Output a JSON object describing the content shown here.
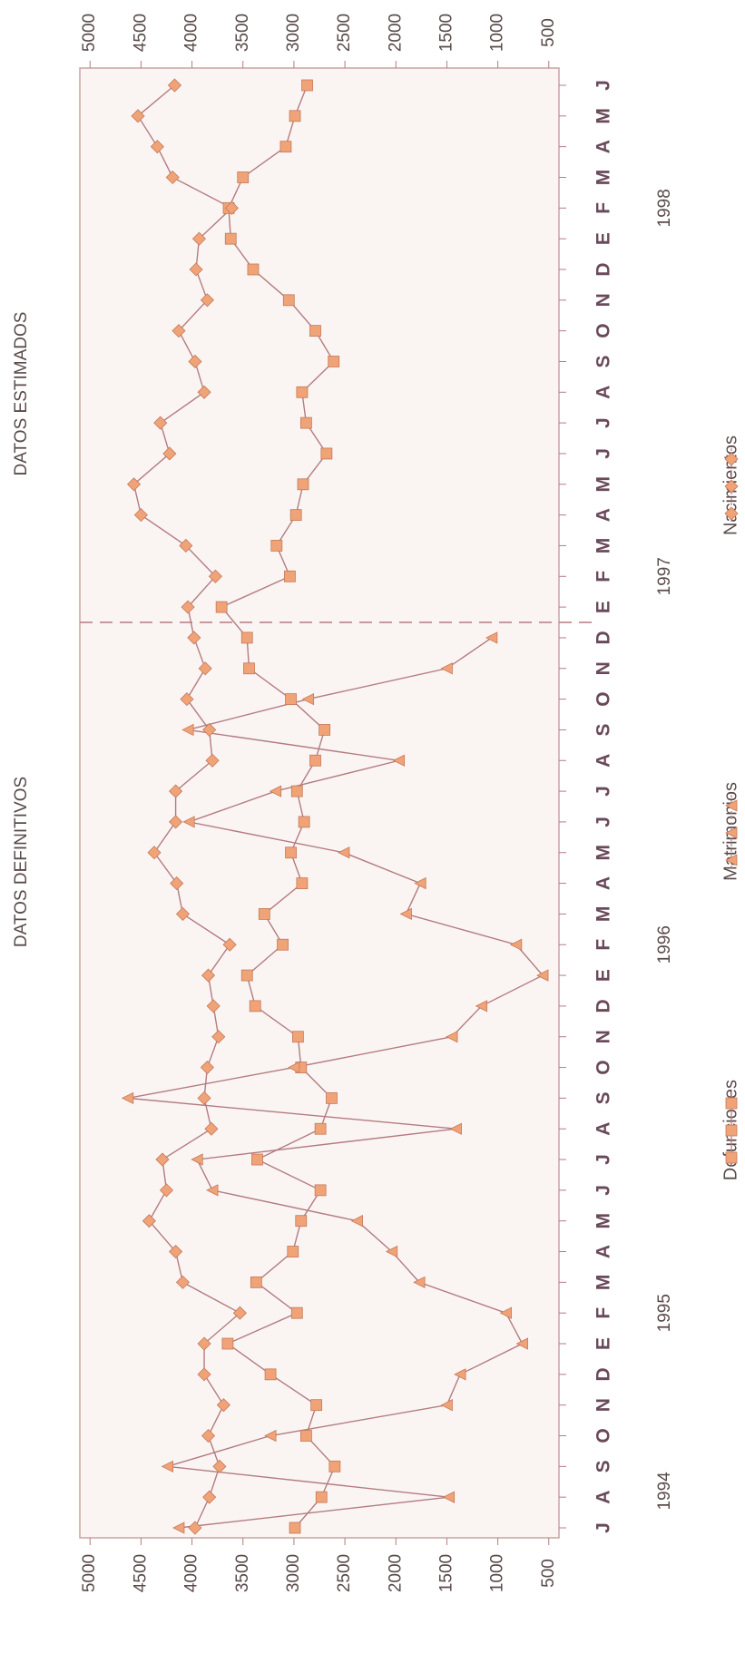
{
  "chart_data": {
    "type": "line",
    "annotations": [
      "DATOS DEFINITIVOS",
      "DATOS ESTIMADOS"
    ],
    "categories": [
      "J",
      "A",
      "S",
      "O",
      "N",
      "D",
      "E",
      "F",
      "M",
      "A",
      "M",
      "J",
      "J",
      "A",
      "S",
      "O",
      "N",
      "D",
      "E",
      "F",
      "M",
      "A",
      "M",
      "J",
      "J",
      "A",
      "S",
      "O",
      "N",
      "D",
      "E",
      "F",
      "M",
      "A",
      "M",
      "J",
      "J",
      "A",
      "S",
      "O",
      "N",
      "D",
      "E",
      "F",
      "M",
      "A",
      "M",
      "J"
    ],
    "year_labels": [
      "1994",
      "1995",
      "1996",
      "1997",
      "1998"
    ],
    "ylim": [
      400,
      5100
    ],
    "yticks": [
      500,
      1000,
      1500,
      2000,
      2500,
      3000,
      3500,
      4000,
      4500,
      5000
    ],
    "line_color": "#b47c80",
    "series": [
      {
        "name": "Defunciones",
        "marker": "square",
        "color": "#f0a377",
        "values": [
          2990,
          2730,
          2600,
          2880,
          2780,
          3230,
          3650,
          2970,
          3370,
          3010,
          2930,
          2740,
          3360,
          2740,
          2630,
          2930,
          2960,
          3380,
          3460,
          3110,
          3290,
          2920,
          3030,
          2900,
          2970,
          2790,
          2700,
          3030,
          3440,
          3460,
          3710,
          3040,
          3170,
          2980,
          2910,
          2680,
          2880,
          2920,
          2610,
          2790,
          3050,
          3400,
          3620,
          3640,
          3500,
          3080,
          2990,
          2870
        ]
      },
      {
        "name": "Matrimonios",
        "marker": "triangle",
        "color": "#f0a377",
        "values": [
          4130,
          1480,
          4240,
          3230,
          1500,
          1370,
          760,
          920,
          1770,
          2040,
          2380,
          3800,
          3950,
          1410,
          4630,
          3000,
          1450,
          1160,
          560,
          820,
          1900,
          1760,
          2510,
          4030,
          3180,
          1970,
          4040,
          2860,
          1500,
          1060,
          null,
          null,
          null,
          null,
          null,
          null,
          null,
          null,
          null,
          null,
          null,
          null,
          null,
          null,
          null,
          null,
          null,
          null
        ]
      },
      {
        "name": "Nacimientos",
        "marker": "diamond",
        "color": "#f0a377",
        "values": [
          3970,
          3830,
          3730,
          3840,
          3690,
          3880,
          3880,
          3530,
          4090,
          4160,
          4420,
          4250,
          4290,
          3810,
          3880,
          3850,
          3740,
          3790,
          3840,
          3630,
          4090,
          4150,
          4370,
          4160,
          4160,
          3800,
          3830,
          4050,
          3870,
          3980,
          4040,
          3770,
          4060,
          4500,
          4570,
          4220,
          4310,
          3880,
          3970,
          4130,
          3850,
          3960,
          3930,
          3610,
          4190,
          4340,
          4530,
          4170
        ]
      }
    ]
  }
}
